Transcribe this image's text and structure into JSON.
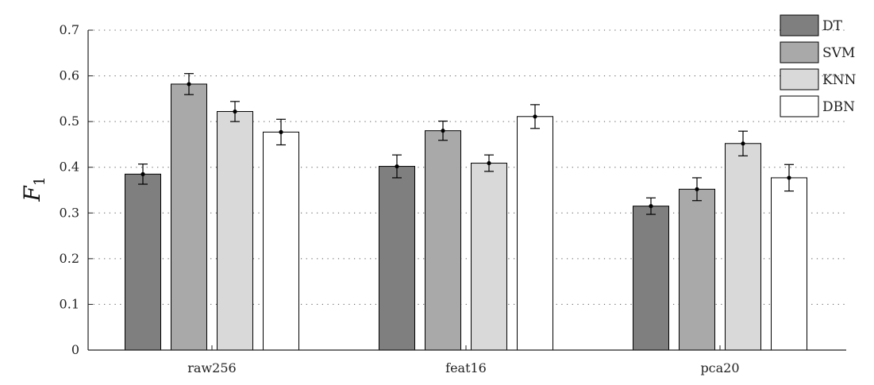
{
  "chart_data": {
    "type": "bar",
    "categories": [
      "raw256",
      "feat16",
      "pca20"
    ],
    "ylabel": "F",
    "ylabel_subscript": "1",
    "ylim": [
      0,
      0.7
    ],
    "yticks": [
      0,
      0.1,
      0.2,
      0.3,
      0.4,
      0.5,
      0.6,
      0.7
    ],
    "ytick_labels": [
      "0",
      "0.1",
      "0.2",
      "0.3",
      "0.4",
      "0.5",
      "0.6",
      "0.7"
    ],
    "grid": "horizontal-dotted",
    "legend_position": "top-right",
    "error_bars": true,
    "series": [
      {
        "name": "DT",
        "color": "#7f7f7f",
        "values": [
          0.385,
          0.402,
          0.315
        ],
        "errors": [
          0.022,
          0.025,
          0.018
        ]
      },
      {
        "name": "SVM",
        "color": "#a9a9a9",
        "values": [
          0.582,
          0.48,
          0.352
        ],
        "errors": [
          0.023,
          0.021,
          0.025
        ]
      },
      {
        "name": "KNN",
        "color": "#d9d9d9",
        "values": [
          0.522,
          0.409,
          0.452
        ],
        "errors": [
          0.022,
          0.018,
          0.027
        ]
      },
      {
        "name": "DBN",
        "color": "#ffffff",
        "values": [
          0.477,
          0.511,
          0.377
        ],
        "errors": [
          0.028,
          0.026,
          0.029
        ]
      }
    ]
  }
}
